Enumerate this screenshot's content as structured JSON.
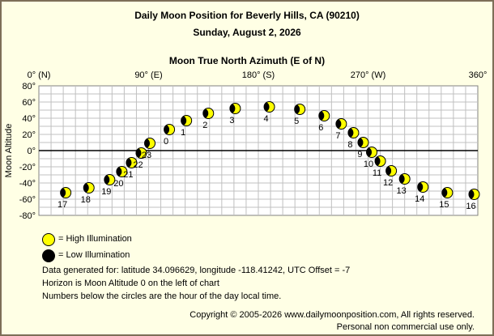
{
  "header": {
    "title": "Daily Moon Position for Beverly Hills, CA (90210)",
    "date": "Sunday, August 2, 2026"
  },
  "chart_data": {
    "type": "scatter",
    "title": "Moon True North Azimuth (E of N)",
    "xlabel": "Moon True North Azimuth (E of N)",
    "ylabel": "Moon Altitude",
    "xlim": [
      0,
      360
    ],
    "ylim": [
      -80,
      80
    ],
    "x_ticks": [
      {
        "value": 0,
        "label": "0° (N)"
      },
      {
        "value": 90,
        "label": "90° (E)"
      },
      {
        "value": 180,
        "label": "180° (S)"
      },
      {
        "value": 270,
        "label": "270° (W)"
      },
      {
        "value": 360,
        "label": "360°"
      }
    ],
    "y_ticks": [
      {
        "value": 80,
        "label": "80°"
      },
      {
        "value": 60,
        "label": "60°"
      },
      {
        "value": 40,
        "label": "40°"
      },
      {
        "value": 20,
        "label": "20°"
      },
      {
        "value": 0,
        "label": "0°"
      },
      {
        "value": -20,
        "label": "-20°"
      },
      {
        "value": -40,
        "label": "-40°"
      },
      {
        "value": -60,
        "label": "-60°"
      },
      {
        "value": -80,
        "label": "-80°"
      }
    ],
    "grid": true,
    "horizon_altitude": 0,
    "colors": {
      "high": "#ffff00",
      "low": "#000000",
      "grid": "#c0c0c0",
      "horizon": "#000000"
    },
    "points": [
      {
        "hour": "17",
        "azimuth": 22,
        "altitude": -52
      },
      {
        "hour": "18",
        "azimuth": 41,
        "altitude": -46
      },
      {
        "hour": "19",
        "azimuth": 58,
        "altitude": -36
      },
      {
        "hour": "20",
        "azimuth": 68,
        "altitude": -26
      },
      {
        "hour": "21",
        "azimuth": 76,
        "altitude": -15
      },
      {
        "hour": "22",
        "azimuth": 84,
        "altitude": -3
      },
      {
        "hour": "23",
        "azimuth": 91,
        "altitude": 9
      },
      {
        "hour": "0",
        "azimuth": 107,
        "altitude": 26
      },
      {
        "hour": "1",
        "azimuth": 121,
        "altitude": 37
      },
      {
        "hour": "2",
        "azimuth": 139,
        "altitude": 46
      },
      {
        "hour": "3",
        "azimuth": 161,
        "altitude": 52
      },
      {
        "hour": "4",
        "azimuth": 189,
        "altitude": 54
      },
      {
        "hour": "5",
        "azimuth": 214,
        "altitude": 51
      },
      {
        "hour": "6",
        "azimuth": 234,
        "altitude": 43
      },
      {
        "hour": "7",
        "azimuth": 248,
        "altitude": 33
      },
      {
        "hour": "8",
        "azimuth": 258,
        "altitude": 22
      },
      {
        "hour": "9",
        "azimuth": 266,
        "altitude": 10
      },
      {
        "hour": "10",
        "azimuth": 273,
        "altitude": -2
      },
      {
        "hour": "11",
        "azimuth": 280,
        "altitude": -13
      },
      {
        "hour": "12",
        "azimuth": 289,
        "altitude": -25
      },
      {
        "hour": "13",
        "azimuth": 300,
        "altitude": -35
      },
      {
        "hour": "14",
        "azimuth": 315,
        "altitude": -45
      },
      {
        "hour": "15",
        "azimuth": 335,
        "altitude": -52
      },
      {
        "hour": "16",
        "azimuth": 357,
        "altitude": -54
      }
    ]
  },
  "legend": {
    "high_label": "= High Illumination",
    "low_label": "= Low Illumination"
  },
  "notes": {
    "line1": "Data generated for: latitude 34.096629, longitude -118.41242, UTC Offset = -7",
    "line2": "Horizon is Moon Altitude 0 on the left of chart",
    "line3": "Numbers below the circles are the hour of the day local time."
  },
  "footer": {
    "copyright": "Copyright © 2005-2026 www.dailymoonposition.com, All rights reserved.",
    "usage": "Personal non commercial use only."
  }
}
